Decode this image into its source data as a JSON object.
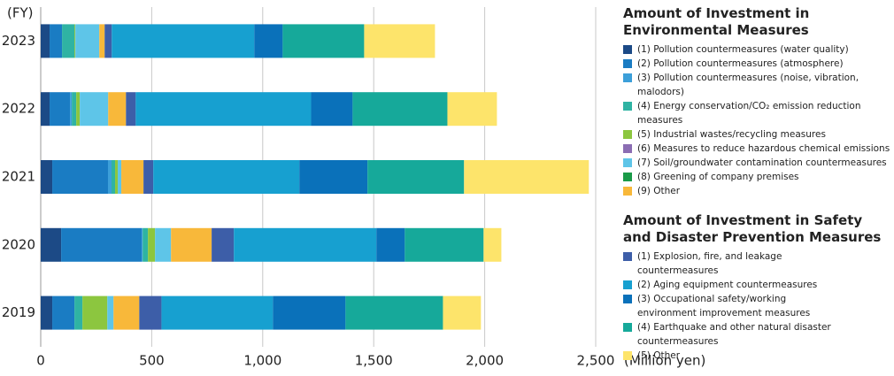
{
  "chart_data": {
    "type": "stacked-bar-horizontal",
    "y_label": "(FY)",
    "x_label": "(Million yen)",
    "categories": [
      "2023",
      "2022",
      "2021",
      "2020",
      "2019"
    ],
    "xlim": [
      0,
      2500
    ],
    "xticks": [
      0,
      500,
      {
        "value": 1000,
        "label": "1,000"
      },
      {
        "value": 1500,
        "label": "1,500"
      },
      {
        "value": 2000,
        "label": "2,000"
      },
      {
        "value": 2500,
        "label": "2,500"
      }
    ],
    "grid": true,
    "series_groups": [
      {
        "title": "Amount of Investment in Environmental Measures",
        "series": [
          {
            "name": "(1) Pollution countermeasures (water quality)",
            "color": "#1c4a86",
            "values": [
              40,
              40,
              52,
              92,
              52
            ]
          },
          {
            "name": "(2) Pollution countermeasures (atmosphere)",
            "color": "#1a7cc3",
            "values": [
              56,
              92,
              251,
              363,
              100
            ]
          },
          {
            "name": "(3) Pollution countermeasures (noise, vibration, malodors)",
            "color": "#3c9fd9",
            "values": [
              0,
              8,
              16,
              4,
              0
            ]
          },
          {
            "name": "(4) Energy conservation/CO₂ emission reduction measures",
            "color": "#2fb3a3",
            "values": [
              56,
              20,
              16,
              24,
              36
            ]
          },
          {
            "name": "(5) Industrial wastes/recycling measures",
            "color": "#8cc63f",
            "values": [
              4,
              16,
              12,
              32,
              112
            ]
          },
          {
            "name": "(6) Measures to reduce hazardous chemical emissions",
            "color": "#8b6db3",
            "values": [
              0,
              0,
              0,
              0,
              0
            ]
          },
          {
            "name": "(7) Soil/groundwater contamination countermeasures",
            "color": "#5ec5e8",
            "values": [
              108,
              128,
              16,
              72,
              28
            ]
          },
          {
            "name": "(8) Greening of company premises",
            "color": "#1a9a48",
            "values": [
              0,
              0,
              0,
              0,
              0
            ]
          },
          {
            "name": "(9) Other",
            "color": "#f8b83a",
            "values": [
              24,
              80,
              100,
              183,
              116
            ]
          }
        ]
      },
      {
        "title": "Amount of Investment in Safety and Disaster Prevention Measures",
        "series": [
          {
            "name": "(1) Explosion, fire, and leakage countermeasures",
            "color": "#3d5ea8",
            "values": [
              32,
              44,
              44,
              100,
              100
            ]
          },
          {
            "name": "(2) Aging equipment countermeasures",
            "color": "#17a0d0",
            "values": [
              642,
              790,
              658,
              642,
              502
            ]
          },
          {
            "name": "(3) Occupational safety/working environment improvement measures",
            "color": "#0a71ba",
            "values": [
              128,
              187,
              307,
              128,
              327
            ]
          },
          {
            "name": "(4) Earthquake and other natural disaster countermeasures",
            "color": "#16a99a",
            "values": [
              367,
              427,
              435,
              355,
              439
            ]
          },
          {
            "name": "(5) Other",
            "color": "#fde46b",
            "values": [
              319,
              223,
              562,
              80,
              171
            ]
          }
        ]
      }
    ]
  }
}
